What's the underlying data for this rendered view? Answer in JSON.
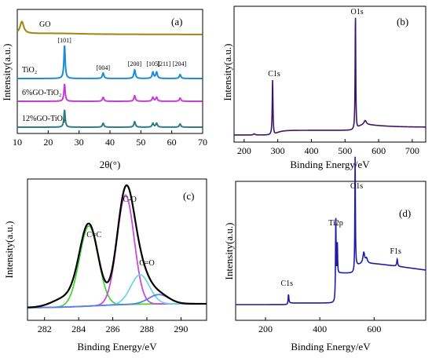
{
  "chart_data": [
    {
      "panel": "(a)",
      "type": "line",
      "xlabel": "2θ(°)",
      "ylabel": "Intensity(a.u.)",
      "xlim": [
        10,
        70
      ],
      "xticks": [
        "10",
        "20",
        "30",
        "40",
        "50",
        "60",
        "70"
      ],
      "series": [
        {
          "name": "GO",
          "color": "#a0850f",
          "offset": 4,
          "peaks": [
            {
              "x": 11.5,
              "h": 15,
              "w": 0.7
            }
          ]
        },
        {
          "name": "TiO₂",
          "color": "#1e8cd2",
          "offset": 3,
          "peaks": [
            {
              "x": 25.3,
              "h": 42,
              "w": 0.25
            },
            {
              "x": 37.8,
              "h": 7,
              "w": 0.3
            },
            {
              "x": 48.0,
              "h": 11,
              "w": 0.3
            },
            {
              "x": 53.9,
              "h": 8,
              "w": 0.3
            },
            {
              "x": 55.1,
              "h": 8,
              "w": 0.3
            },
            {
              "x": 62.7,
              "h": 5,
              "w": 0.3
            }
          ]
        },
        {
          "name": "6%GO-TiO₂",
          "color": "#c43ed0",
          "offset": 2,
          "peaks": [
            {
              "x": 25.3,
              "h": 22,
              "w": 0.25
            },
            {
              "x": 37.8,
              "h": 5,
              "w": 0.3
            },
            {
              "x": 48.0,
              "h": 7,
              "w": 0.3
            },
            {
              "x": 53.9,
              "h": 5,
              "w": 0.3
            },
            {
              "x": 55.1,
              "h": 5,
              "w": 0.3
            },
            {
              "x": 62.7,
              "h": 4,
              "w": 0.3
            }
          ]
        },
        {
          "name": "12%GO-TiO₂",
          "color": "#2e7d84",
          "offset": 1,
          "peaks": [
            {
              "x": 25.3,
              "h": 22,
              "w": 0.25
            },
            {
              "x": 37.8,
              "h": 5,
              "w": 0.3
            },
            {
              "x": 48.0,
              "h": 7,
              "w": 0.3
            },
            {
              "x": 53.9,
              "h": 5,
              "w": 0.3
            },
            {
              "x": 55.1,
              "h": 5,
              "w": 0.3
            },
            {
              "x": 62.7,
              "h": 4,
              "w": 0.3
            }
          ]
        }
      ],
      "peak_labels": [
        {
          "text": "[101]",
          "x": 25.3
        },
        {
          "text": "[004]",
          "x": 37.8
        },
        {
          "text": "[200]",
          "x": 48.0
        },
        {
          "text": "[105]",
          "x": 54.0
        },
        {
          "text": "[211]",
          "x": 57.5
        },
        {
          "text": "[204]",
          "x": 62.5
        }
      ]
    },
    {
      "panel": "(b)",
      "type": "line",
      "xlabel": "Binding Energy/eV",
      "ylabel": "Intensity(a.u.)",
      "xlim": [
        170,
        740
      ],
      "xticks": [
        "200",
        "300",
        "400",
        "500",
        "600",
        "700"
      ],
      "color": "#3d1466",
      "annotations": [
        {
          "text": "C1s",
          "x": 284.6
        },
        {
          "text": "O1s",
          "x": 531
        }
      ]
    },
    {
      "panel": "(c)",
      "type": "line",
      "xlabel": "Binding Energy/eV",
      "ylabel": "Intensity(a.u.)",
      "xlim": [
        281,
        291.5
      ],
      "xticks": [
        "282",
        "284",
        "286",
        "288",
        "290"
      ],
      "series": [
        {
          "name": "C=C",
          "color": "#4cd43a",
          "center": 284.6,
          "height": 0.6,
          "sigma": 0.55
        },
        {
          "name": "C-O",
          "color": "#c64ed6",
          "center": 286.75,
          "height": 0.82,
          "sigma": 0.5
        },
        {
          "name": "C=O",
          "color": "#6fd6e6",
          "center": 287.6,
          "height": 0.22,
          "sigma": 0.55
        },
        {
          "name": "",
          "color": "#5b7ee8",
          "center": 288.7,
          "height": 0.07,
          "sigma": 0.6
        }
      ],
      "envelope_color": "#000000",
      "annotations": [
        {
          "text": "C=C",
          "x": 284.9
        },
        {
          "text": "C-O",
          "x": 287.0
        },
        {
          "text": "C=O",
          "x": 288.0
        }
      ]
    },
    {
      "panel": "(d)",
      "type": "line",
      "xlabel": "Binding Energy/eV",
      "ylabel": "Intensity(a.u.)",
      "xlim": [
        90,
        790
      ],
      "xticks": [
        "200",
        "400",
        "600"
      ],
      "color": "#1c1ca8",
      "annotations": [
        {
          "text": "C1s",
          "x": 284.6
        },
        {
          "text": "Ti2p",
          "x": 458.8
        },
        {
          "text": "O1s",
          "x": 530
        },
        {
          "text": "F1s",
          "x": 685
        }
      ]
    }
  ]
}
